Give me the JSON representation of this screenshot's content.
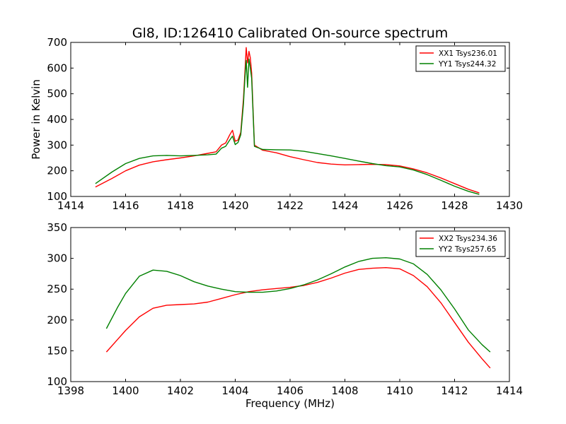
{
  "figure": {
    "title": "Gl8, ID:126410 Calibrated On-source spectrum",
    "ylabel": "Power in Kelvin",
    "xlabel": "Frequency (MHz)"
  },
  "colors": {
    "red": "#ff0000",
    "green": "#008000",
    "axes": "#000000",
    "background": "#ffffff"
  },
  "chart_data": [
    {
      "type": "line",
      "title": "Gl8, ID:126410 Calibrated On-source spectrum",
      "xlabel": "",
      "ylabel": "Power in Kelvin",
      "xlim": [
        1414,
        1430
      ],
      "ylim": [
        100,
        700
      ],
      "xticks": [
        1414,
        1416,
        1418,
        1420,
        1422,
        1424,
        1426,
        1428,
        1430
      ],
      "yticks": [
        100,
        200,
        300,
        400,
        500,
        600,
        700
      ],
      "legend_position": "top-right",
      "grid": false,
      "series": [
        {
          "name": "XX1 Tsys236.01",
          "color": "#ff0000",
          "x": [
            1414.9,
            1415.5,
            1416,
            1416.5,
            1417,
            1417.5,
            1418,
            1418.5,
            1419,
            1419.3,
            1419.5,
            1419.65,
            1419.8,
            1419.9,
            1420.0,
            1420.1,
            1420.2,
            1420.3,
            1420.35,
            1420.4,
            1420.45,
            1420.5,
            1420.55,
            1420.6,
            1420.7,
            1421,
            1421.5,
            1422,
            1422.5,
            1423,
            1423.5,
            1424,
            1424.5,
            1425,
            1425.5,
            1426,
            1426.5,
            1427,
            1427.5,
            1428,
            1428.5,
            1428.9
          ],
          "y": [
            137,
            170,
            200,
            222,
            235,
            243,
            250,
            258,
            268,
            274,
            300,
            308,
            340,
            358,
            315,
            320,
            350,
            480,
            580,
            680,
            620,
            665,
            640,
            580,
            300,
            280,
            270,
            255,
            243,
            232,
            226,
            223,
            224,
            225,
            224,
            219,
            207,
            192,
            172,
            150,
            128,
            114
          ]
        },
        {
          "name": "YY1 Tsys244.32",
          "color": "#008000",
          "x": [
            1414.9,
            1415.5,
            1416,
            1416.5,
            1417,
            1417.5,
            1418,
            1418.5,
            1419,
            1419.3,
            1419.5,
            1419.65,
            1419.8,
            1419.9,
            1420.0,
            1420.1,
            1420.2,
            1420.3,
            1420.35,
            1420.4,
            1420.45,
            1420.5,
            1420.55,
            1420.6,
            1420.7,
            1421,
            1421.5,
            1422,
            1422.5,
            1423,
            1423.5,
            1424,
            1424.5,
            1425,
            1425.5,
            1426,
            1426.5,
            1427,
            1427.5,
            1428,
            1428.5,
            1428.9
          ],
          "y": [
            150,
            195,
            228,
            248,
            258,
            260,
            258,
            260,
            262,
            265,
            288,
            295,
            320,
            335,
            302,
            310,
            340,
            460,
            560,
            630,
            525,
            635,
            600,
            560,
            295,
            283,
            282,
            281,
            276,
            267,
            258,
            248,
            238,
            228,
            220,
            215,
            203,
            185,
            163,
            140,
            120,
            108
          ]
        }
      ]
    },
    {
      "type": "line",
      "title": "",
      "xlabel": "Frequency (MHz)",
      "ylabel": "",
      "xlim": [
        1398,
        1414
      ],
      "ylim": [
        100,
        350
      ],
      "xticks": [
        1398,
        1400,
        1402,
        1404,
        1406,
        1408,
        1410,
        1412,
        1414
      ],
      "yticks": [
        100,
        150,
        200,
        250,
        300,
        350
      ],
      "legend_position": "top-right",
      "grid": false,
      "series": [
        {
          "name": "XX2 Tsys234.36",
          "color": "#ff0000",
          "x": [
            1399.3,
            1399.7,
            1400,
            1400.5,
            1401,
            1401.5,
            1402,
            1402.5,
            1403,
            1403.5,
            1404,
            1404.5,
            1405,
            1405.5,
            1406,
            1406.5,
            1407,
            1407.5,
            1408,
            1408.5,
            1409,
            1409.5,
            1410,
            1410.5,
            1411,
            1411.5,
            1412,
            1412.5,
            1413,
            1413.3
          ],
          "y": [
            148,
            168,
            183,
            205,
            219,
            224,
            225,
            226,
            229,
            235,
            241,
            246,
            249,
            251,
            253,
            256,
            261,
            268,
            276,
            282,
            284,
            285,
            283,
            272,
            254,
            228,
            196,
            164,
            137,
            122
          ]
        },
        {
          "name": "YY2 Tsys257.65",
          "color": "#008000",
          "x": [
            1399.3,
            1399.7,
            1400,
            1400.5,
            1401,
            1401.5,
            1402,
            1402.5,
            1403,
            1403.5,
            1404,
            1404.5,
            1405,
            1405.5,
            1406,
            1406.5,
            1407,
            1407.5,
            1408,
            1408.5,
            1409,
            1409.5,
            1410,
            1410.5,
            1411,
            1411.5,
            1412,
            1412.5,
            1413,
            1413.3
          ],
          "y": [
            186,
            220,
            243,
            271,
            281,
            279,
            272,
            262,
            255,
            250,
            246,
            245,
            245,
            247,
            251,
            257,
            265,
            275,
            286,
            295,
            300,
            301,
            299,
            291,
            274,
            249,
            218,
            184,
            160,
            148
          ]
        }
      ]
    }
  ]
}
